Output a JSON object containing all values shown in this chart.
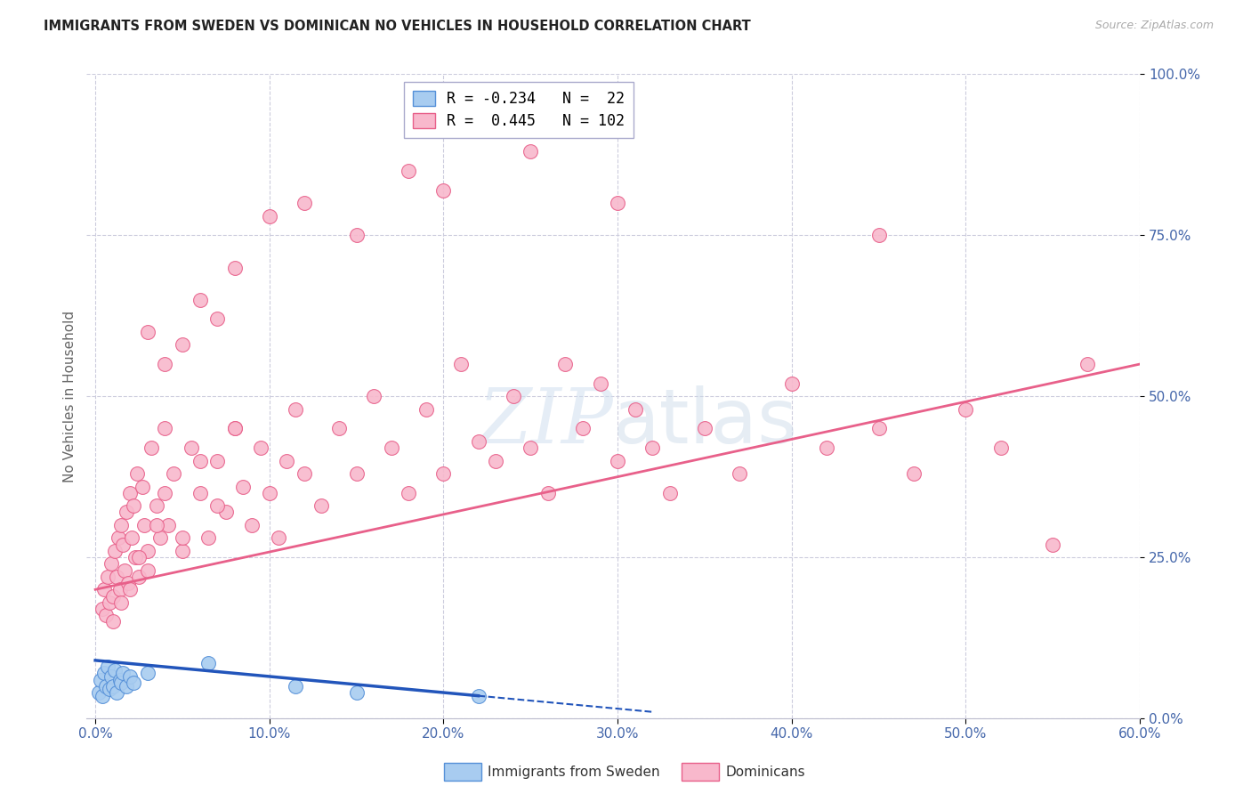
{
  "title": "IMMIGRANTS FROM SWEDEN VS DOMINICAN NO VEHICLES IN HOUSEHOLD CORRELATION CHART",
  "source": "Source: ZipAtlas.com",
  "ylabel": "No Vehicles in Household",
  "x_tick_labels": [
    "0.0%",
    "",
    "10.0%",
    "",
    "20.0%",
    "",
    "30.0%",
    "",
    "40.0%",
    "",
    "50.0%",
    "",
    "60.0%"
  ],
  "x_tick_values": [
    0.0,
    5.0,
    10.0,
    15.0,
    20.0,
    25.0,
    30.0,
    35.0,
    40.0,
    45.0,
    50.0,
    55.0,
    60.0
  ],
  "y_tick_labels": [
    "0.0%",
    "25.0%",
    "50.0%",
    "75.0%",
    "100.0%"
  ],
  "y_tick_values": [
    0.0,
    25.0,
    50.0,
    75.0,
    100.0
  ],
  "xlim": [
    -0.5,
    60.0
  ],
  "ylim": [
    0.0,
    100.0
  ],
  "sweden_R": -0.234,
  "sweden_N": 22,
  "dominican_R": 0.445,
  "dominican_N": 102,
  "legend_sweden_label": "Immigrants from Sweden",
  "legend_dominican_label": "Dominicans",
  "sweden_color": "#A8CCF0",
  "dominican_color": "#F8B8CC",
  "sweden_edge_color": "#5590D8",
  "dominican_edge_color": "#E8608A",
  "sweden_line_color": "#2255BB",
  "dominican_line_color": "#E8608A",
  "background_color": "#FFFFFF",
  "grid_color": "#CCCCDD",
  "title_color": "#222222",
  "axis_label_color": "#4466AA",
  "sweden_scatter_x": [
    0.2,
    0.3,
    0.4,
    0.5,
    0.6,
    0.7,
    0.8,
    0.9,
    1.0,
    1.1,
    1.2,
    1.4,
    1.5,
    1.6,
    1.8,
    2.0,
    2.2,
    3.0,
    6.5,
    11.5,
    15.0,
    22.0
  ],
  "sweden_scatter_y": [
    4.0,
    6.0,
    3.5,
    7.0,
    5.0,
    8.0,
    4.5,
    6.5,
    5.0,
    7.5,
    4.0,
    6.0,
    5.5,
    7.0,
    5.0,
    6.5,
    5.5,
    7.0,
    8.5,
    5.0,
    4.0,
    3.5
  ],
  "dominican_scatter_x": [
    0.4,
    0.5,
    0.6,
    0.7,
    0.8,
    0.9,
    1.0,
    1.1,
    1.2,
    1.3,
    1.4,
    1.5,
    1.6,
    1.7,
    1.8,
    1.9,
    2.0,
    2.1,
    2.2,
    2.3,
    2.4,
    2.5,
    2.7,
    2.8,
    3.0,
    3.2,
    3.5,
    3.7,
    4.0,
    4.2,
    4.5,
    5.0,
    5.5,
    6.0,
    6.5,
    7.0,
    7.5,
    8.0,
    8.5,
    9.0,
    9.5,
    10.0,
    10.5,
    11.0,
    11.5,
    12.0,
    13.0,
    14.0,
    15.0,
    16.0,
    17.0,
    18.0,
    19.0,
    20.0,
    21.0,
    22.0,
    23.0,
    24.0,
    25.0,
    26.0,
    27.0,
    28.0,
    29.0,
    30.0,
    31.0,
    32.0,
    33.0,
    35.0,
    37.0,
    40.0,
    42.0,
    45.0,
    47.0,
    50.0,
    52.0,
    55.0,
    57.0,
    1.0,
    1.5,
    2.0,
    2.5,
    3.0,
    3.5,
    4.0,
    5.0,
    6.0,
    7.0,
    8.0,
    3.0,
    4.0,
    5.0,
    6.0,
    7.0,
    8.0,
    10.0,
    12.0,
    15.0,
    18.0,
    20.0,
    25.0,
    30.0,
    45.0
  ],
  "dominican_scatter_y": [
    17.0,
    20.0,
    16.0,
    22.0,
    18.0,
    24.0,
    19.0,
    26.0,
    22.0,
    28.0,
    20.0,
    30.0,
    27.0,
    23.0,
    32.0,
    21.0,
    35.0,
    28.0,
    33.0,
    25.0,
    38.0,
    22.0,
    36.0,
    30.0,
    26.0,
    42.0,
    33.0,
    28.0,
    45.0,
    30.0,
    38.0,
    26.0,
    42.0,
    35.0,
    28.0,
    40.0,
    32.0,
    45.0,
    36.0,
    30.0,
    42.0,
    35.0,
    28.0,
    40.0,
    48.0,
    38.0,
    33.0,
    45.0,
    38.0,
    50.0,
    42.0,
    35.0,
    48.0,
    38.0,
    55.0,
    43.0,
    40.0,
    50.0,
    42.0,
    35.0,
    55.0,
    45.0,
    52.0,
    40.0,
    48.0,
    42.0,
    35.0,
    45.0,
    38.0,
    52.0,
    42.0,
    45.0,
    38.0,
    48.0,
    42.0,
    27.0,
    55.0,
    15.0,
    18.0,
    20.0,
    25.0,
    23.0,
    30.0,
    35.0,
    28.0,
    40.0,
    33.0,
    45.0,
    60.0,
    55.0,
    58.0,
    65.0,
    62.0,
    70.0,
    78.0,
    80.0,
    75.0,
    85.0,
    82.0,
    88.0,
    80.0,
    75.0
  ],
  "dominican_trendline_x0": 0.0,
  "dominican_trendline_x1": 60.0,
  "dominican_trendline_y0": 20.0,
  "dominican_trendline_y1": 55.0,
  "sweden_trendline_x0": 0.0,
  "sweden_trendline_x1": 22.0,
  "sweden_trendline_y0": 9.0,
  "sweden_trendline_y1": 3.5,
  "sweden_dashed_x0": 22.0,
  "sweden_dashed_x1": 32.0,
  "sweden_dashed_y0": 3.5,
  "sweden_dashed_y1": 1.0
}
